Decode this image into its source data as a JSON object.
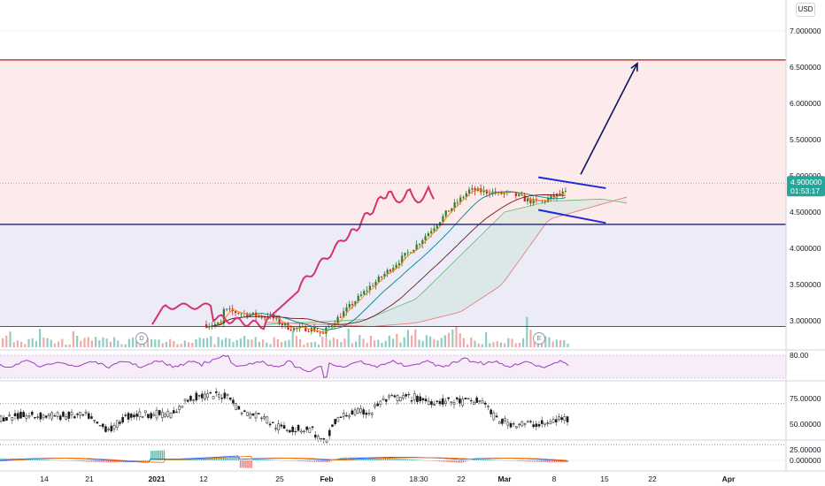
{
  "currency_badge": "USD",
  "markers": [
    {
      "label": "D"
    },
    {
      "label": "E"
    }
  ],
  "colors": {
    "red_line": "#c62828",
    "blue_line": "#1a237e",
    "red_zone": "#fdebeb",
    "blue_zone": "#ececf8",
    "rsi_line": "#9c3ebf",
    "price_tag": "#26a69a",
    "volume_up": "#7cc3bb",
    "volume_down": "#ef9a9a",
    "lagging": "#d6336c"
  },
  "chart_data": [
    {
      "type": "candlestick",
      "panel": "price",
      "price_axis_labels": [
        "7.000000",
        "6.500000",
        "6.000000",
        "5.500000",
        "5.000000",
        "4.500000",
        "4.000000",
        "3.500000",
        "3.000000"
      ],
      "ylim": [
        2.7,
        7.2
      ],
      "current_price": "4.900000",
      "countdown": "01:53:17",
      "horizontal_levels": [
        6.6,
        4.33,
        2.92
      ],
      "zones": [
        {
          "from": 4.33,
          "to": 6.6,
          "color": "red"
        },
        {
          "from": 2.92,
          "to": 4.33,
          "color": "blue"
        }
      ],
      "channel_upper": [
        [
          -6,
          4.98
        ],
        [
          8,
          4.83
        ]
      ],
      "channel_lower": [
        [
          -6,
          4.53
        ],
        [
          8,
          4.35
        ]
      ],
      "projection_arrow": [
        [
          7,
          5.02
        ],
        [
          12,
          6.6
        ]
      ]
    },
    {
      "type": "line",
      "panel": "rsi",
      "price_axis_labels": [
        "80.00"
      ]
    },
    {
      "type": "line",
      "panel": "stochastic",
      "price_axis_labels": [
        "75.00000",
        "50.00000",
        "25.00000"
      ],
      "ylim": [
        10,
        95
      ],
      "levels": [
        70,
        30
      ]
    },
    {
      "type": "bar",
      "panel": "macd",
      "price_axis_labels": [
        "0.000000"
      ]
    },
    {
      "type": "time_axis",
      "x_labels": [
        "14",
        "21",
        "2021",
        "12",
        "25",
        "Feb",
        "8",
        "18:30",
        "22",
        "Mar",
        "8",
        "15",
        "22",
        "Apr"
      ]
    }
  ]
}
